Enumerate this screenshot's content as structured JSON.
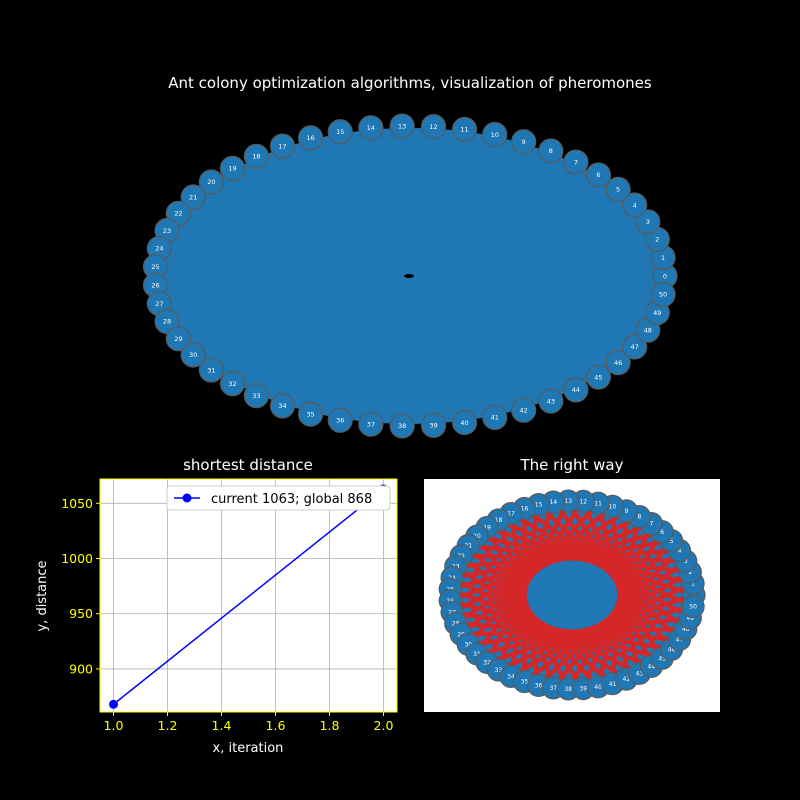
{
  "figure": {
    "background": "#000000",
    "node_color": "#1f77b4",
    "node_edge_color": "#5a5a5a",
    "edge_color": "#d62728",
    "node_count": 51
  },
  "chart_data": [
    {
      "type": "network",
      "title": "Ant colony optimization algorithms, visualization of pheromones",
      "layout": "ellipse",
      "nodes": [
        "0",
        "1",
        "2",
        "3",
        "4",
        "5",
        "6",
        "7",
        "8",
        "9",
        "10",
        "11",
        "12",
        "13",
        "14",
        "15",
        "16",
        "17",
        "18",
        "19",
        "20",
        "21",
        "22",
        "23",
        "24",
        "25",
        "26",
        "27",
        "28",
        "29",
        "30",
        "31",
        "32",
        "33",
        "34",
        "35",
        "36",
        "37",
        "38",
        "39",
        "40",
        "41",
        "42",
        "43",
        "44",
        "45",
        "46",
        "47",
        "48",
        "49",
        "50"
      ]
    },
    {
      "type": "line",
      "title": "shortest distance",
      "xlabel": "x, iteration",
      "ylabel": "y, distance",
      "xlim": [
        0.95,
        2.05
      ],
      "ylim": [
        861,
        1072
      ],
      "x_ticks": [
        "1.0",
        "1.2",
        "1.4",
        "1.6",
        "1.8",
        "2.0"
      ],
      "y_ticks": [
        "900",
        "950",
        "1000",
        "1050"
      ],
      "grid": true,
      "legend_position": "top-right",
      "series": [
        {
          "name": "current 1063; global 868",
          "color": "#0000ff",
          "x": [
            1,
            2
          ],
          "y": [
            868,
            1063
          ]
        }
      ]
    },
    {
      "type": "network",
      "title": "The right way",
      "layout": "ellipse",
      "background": "#ffffff",
      "nodes": [
        "0",
        "1",
        "2",
        "3",
        "4",
        "5",
        "6",
        "7",
        "8",
        "9",
        "10",
        "11",
        "12",
        "13",
        "14",
        "15",
        "16",
        "17",
        "18",
        "19",
        "20",
        "21",
        "22",
        "23",
        "24",
        "25",
        "26",
        "27",
        "28",
        "29",
        "30",
        "31",
        "32",
        "33",
        "34",
        "35",
        "36",
        "37",
        "38",
        "39",
        "40",
        "41",
        "42",
        "43",
        "44",
        "45",
        "46",
        "47",
        "48",
        "49",
        "50"
      ]
    }
  ]
}
